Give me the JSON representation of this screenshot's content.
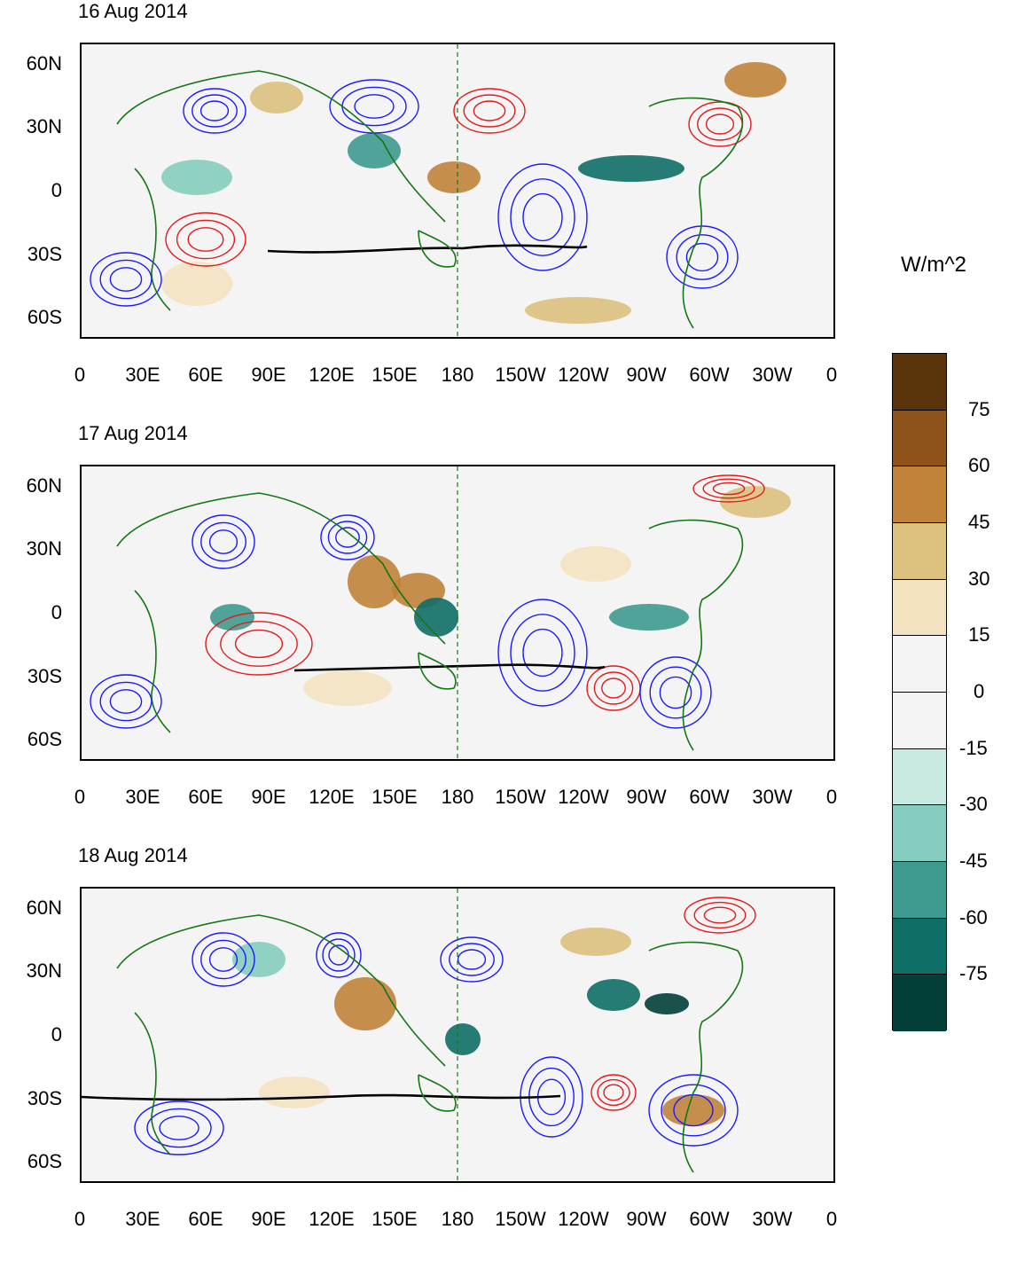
{
  "units": "W/m^2",
  "panels": [
    {
      "title": "16 Aug 2014"
    },
    {
      "title": "17 Aug 2014"
    },
    {
      "title": "18 Aug 2014"
    }
  ],
  "lat_labels": [
    "60N",
    "30N",
    "0",
    "30S",
    "60S"
  ],
  "lon_labels": [
    "0",
    "30E",
    "60E",
    "90E",
    "120E",
    "150E",
    "180",
    "150W",
    "120W",
    "90W",
    "60W",
    "30W",
    "0"
  ],
  "colorbar": {
    "levels": [
      "75",
      "60",
      "45",
      "30",
      "15",
      "0",
      "-15",
      "-30",
      "-45",
      "-60",
      "-75"
    ],
    "colors": [
      "#5a3509",
      "#8f5218",
      "#c1833a",
      "#dcc17f",
      "#f4e3c1",
      "#f4f4f4",
      "#f4f4f4",
      "#c8eae2",
      "#86cdbf",
      "#3e9a8f",
      "#0f6e66",
      "#023f38"
    ]
  },
  "contour_colors": {
    "positive": "#e41a1c",
    "negative": "#1a1aff",
    "zero": "#000000",
    "land": "#147814"
  }
}
